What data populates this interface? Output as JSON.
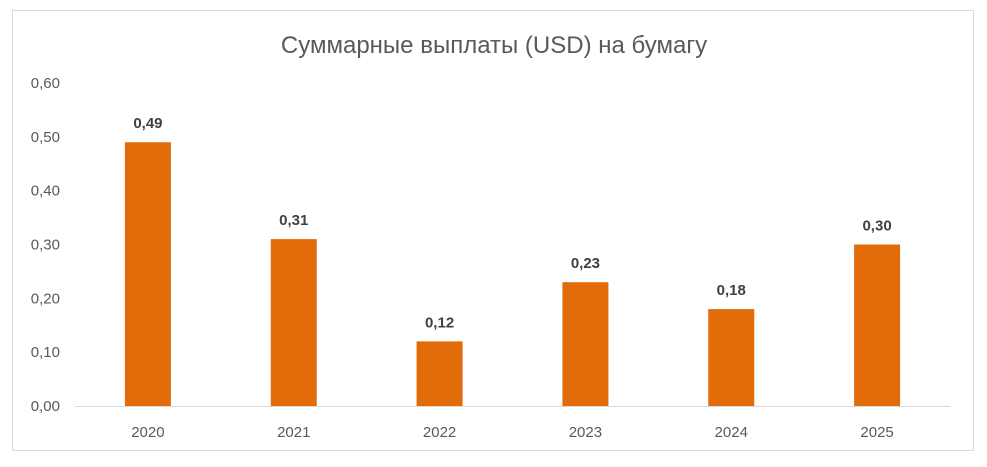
{
  "chart_data": {
    "type": "bar",
    "title": "Суммарные выплаты (USD) на бумагу",
    "xlabel": "",
    "ylabel": "",
    "categories": [
      "2020",
      "2021",
      "2022",
      "2023",
      "2024",
      "2025"
    ],
    "values": [
      0.49,
      0.31,
      0.12,
      0.23,
      0.18,
      0.3
    ],
    "data_labels": [
      "0,49",
      "0,31",
      "0,12",
      "0,23",
      "0,18",
      "0,30"
    ],
    "ylim": [
      0,
      0.6
    ],
    "y_ticks": [
      "0,00",
      "0,10",
      "0,20",
      "0,30",
      "0,40",
      "0,50",
      "0,60"
    ],
    "grid": false,
    "legend": "none",
    "bar_color": "#E36C0A"
  }
}
